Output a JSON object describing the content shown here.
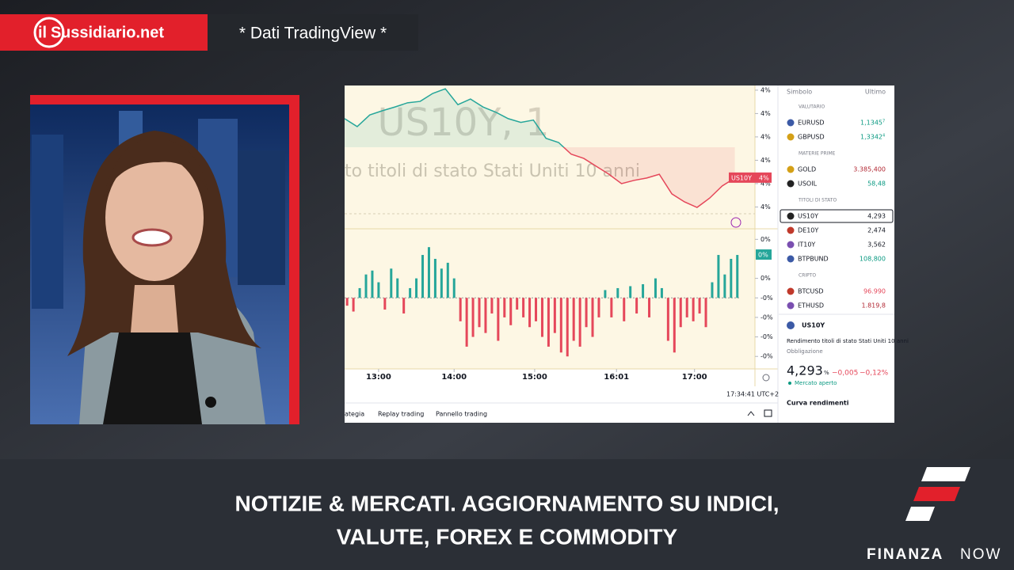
{
  "header": {
    "logo_prefix": "il",
    "logo_mark": "S",
    "logo_text": "ussidiario.net",
    "source": "* Dati TradingView *"
  },
  "chart": {
    "type": "line",
    "symbol": "US10Y, 1",
    "description": "to titoli di stato Stati Uniti 10 anni",
    "xlim": [
      0,
      326
    ],
    "xticks": [
      {
        "value": 27,
        "label": "13:00"
      },
      {
        "value": 87,
        "label": "14:00"
      },
      {
        "value": 151,
        "label": "15:00"
      },
      {
        "value": 216,
        "label": "16:01"
      },
      {
        "value": 278,
        "label": "17:00"
      }
    ],
    "price": {
      "name": "US10Y",
      "color": "#26a69a",
      "down_color": "#e5475a",
      "last_label": "4%",
      "ylim": [
        4.2805,
        4.311
      ],
      "yticks": [
        {
          "value": 4.31,
          "label": "4%"
        },
        {
          "value": 4.305,
          "label": "4%"
        },
        {
          "value": 4.3,
          "label": "4%"
        },
        {
          "value": 4.295,
          "label": "4%"
        },
        {
          "value": 4.29,
          "label": "4%"
        },
        {
          "value": 4.285,
          "label": "4%"
        }
      ],
      "x": [
        0,
        10,
        20,
        30,
        40,
        50,
        60,
        70,
        80,
        90,
        100,
        110,
        120,
        130,
        140,
        150,
        160,
        170,
        180,
        190,
        200,
        210,
        220,
        230,
        240,
        250,
        260,
        270,
        280,
        290,
        300,
        310
      ],
      "values": [
        4.3039,
        4.3022,
        4.3047,
        4.3056,
        4.3064,
        4.3073,
        4.3076,
        4.3093,
        4.3103,
        4.3069,
        4.3081,
        4.3064,
        4.3053,
        4.3039,
        4.3031,
        4.3036,
        4.2997,
        4.2988,
        4.2963,
        4.2954,
        4.2937,
        4.292,
        4.29,
        4.2907,
        4.2912,
        4.292,
        4.2878,
        4.2861,
        4.2849,
        4.2869,
        4.2895,
        4.2912
      ]
    },
    "histogram": {
      "type": "bar",
      "up_color": "#26a69a",
      "down_color": "#e5475a",
      "last_label": "0%",
      "ylim": [
        -0.036,
        0.035
      ],
      "yticks": [
        {
          "value": 0.03,
          "label": "0%"
        },
        {
          "value": 0.01,
          "label": "0%"
        },
        {
          "value": 0,
          "label": "-0%"
        },
        {
          "value": -0.01,
          "label": "-0%"
        },
        {
          "value": -0.02,
          "label": "-0%"
        },
        {
          "value": -0.03,
          "label": "-0%"
        }
      ],
      "x": [
        2,
        7,
        12,
        17,
        22,
        27,
        32,
        37,
        42,
        47,
        52,
        57,
        62,
        67,
        72,
        77,
        82,
        87,
        92,
        97,
        102,
        107,
        112,
        117,
        122,
        127,
        132,
        137,
        142,
        147,
        152,
        157,
        162,
        167,
        172,
        177,
        182,
        187,
        192,
        197,
        202,
        207,
        212,
        217,
        222,
        227,
        232,
        237,
        242,
        247,
        252,
        257,
        262,
        267,
        272,
        277,
        282,
        287,
        292,
        297,
        302,
        307,
        312
      ],
      "values": [
        -0.004,
        -0.007,
        0.005,
        0.012,
        0.014,
        0.008,
        -0.006,
        0.015,
        0.01,
        -0.008,
        0.005,
        0.01,
        0.022,
        0.026,
        0.02,
        0.015,
        0.018,
        0.01,
        -0.012,
        -0.025,
        -0.02,
        -0.015,
        -0.018,
        -0.008,
        -0.022,
        -0.01,
        -0.014,
        -0.006,
        -0.01,
        -0.015,
        -0.012,
        -0.02,
        -0.025,
        -0.018,
        -0.028,
        -0.03,
        -0.022,
        -0.025,
        -0.015,
        -0.02,
        -0.01,
        0.004,
        -0.01,
        0.005,
        -0.012,
        0.006,
        -0.008,
        0.007,
        -0.01,
        0.01,
        0.005,
        -0.022,
        -0.028,
        -0.015,
        -0.01,
        -0.012,
        -0.008,
        -0.015,
        0.008,
        0.022,
        0.012,
        0.02,
        0.022
      ]
    },
    "clock": "17:34:41 UTC+2",
    "toolbar": [
      "ategia",
      "Replay trading",
      "Pannello trading"
    ]
  },
  "watchlist": {
    "columns": [
      "Simbolo",
      "Ultimo"
    ],
    "sections": [
      {
        "title": "VALUTARIO",
        "rows": [
          {
            "symbol": "EURUSD",
            "value": "1,1345",
            "pip": "7",
            "color": "#089981"
          },
          {
            "symbol": "GBPUSD",
            "value": "1,3342",
            "pip": "4",
            "color": "#089981"
          }
        ]
      },
      {
        "title": "MATERIE PRIME",
        "rows": [
          {
            "symbol": "GOLD",
            "value": "3.385,400",
            "color": "#b22833"
          },
          {
            "symbol": "USOIL",
            "value": "58,48",
            "color": "#089981"
          }
        ]
      },
      {
        "title": "TITOLI DI STATO",
        "rows": [
          {
            "symbol": "US10Y",
            "value": "4,293",
            "color": "#131722",
            "selected": true
          },
          {
            "symbol": "DE10Y",
            "value": "2,474",
            "color": "#131722"
          },
          {
            "symbol": "IT10Y",
            "value": "3,562",
            "color": "#131722"
          },
          {
            "symbol": "BTPBUND",
            "value": "108,800",
            "color": "#089981"
          }
        ]
      },
      {
        "title": "CRIPTO",
        "rows": [
          {
            "symbol": "BTCUSD",
            "value": "96.990",
            "color": "#e5475a"
          },
          {
            "symbol": "ETHUSD",
            "value": "1.819,8",
            "color": "#b22833"
          }
        ]
      }
    ]
  },
  "details": {
    "symbol": "US10Y",
    "description": "Rendimento titoli di stato Stati Uniti 10 anni",
    "kind": "Obbligazione",
    "price": "4,293",
    "unit": "%",
    "change": "−0,005",
    "change_pct": "−0,12%",
    "status": "Mercato aperto",
    "link": "Curva rendimenti"
  },
  "caption": {
    "lines": [
      "NOTIZIE & MERCATI. AGGIORNAMENTO SU INDICI,",
      "VALUTE, FOREX E COMMODITY"
    ]
  },
  "brand": {
    "bold": "FINANZA",
    "light": "NOW"
  }
}
